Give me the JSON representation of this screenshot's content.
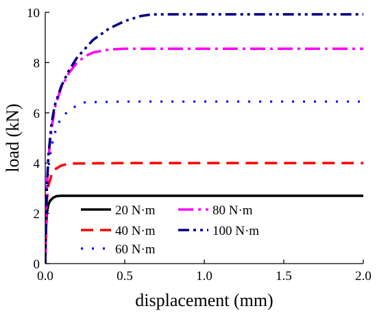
{
  "chart_data": {
    "type": "line",
    "xlabel": "displacement (mm)",
    "ylabel": "load (kN)",
    "xlim": [
      0,
      2.0
    ],
    "ylim": [
      0,
      10
    ],
    "xticks": [
      "0.0",
      "0.5",
      "1.0",
      "1.5",
      "2.0"
    ],
    "yticks": [
      "0",
      "2",
      "4",
      "6",
      "8",
      "10"
    ],
    "grid": false,
    "legend_position": "bottom-left",
    "series": [
      {
        "name": "20 N·m",
        "color": "#000000",
        "style": "solid",
        "x": [
          0,
          0.005,
          0.01,
          0.02,
          0.03,
          0.05,
          0.07,
          0.1,
          0.5,
          1.0,
          1.5,
          2.0
        ],
        "y": [
          0,
          1.4,
          2.0,
          2.35,
          2.5,
          2.62,
          2.68,
          2.7,
          2.7,
          2.7,
          2.7,
          2.7
        ]
      },
      {
        "name": "40 N·m",
        "color": "#ff0000",
        "style": "dash",
        "x": [
          0,
          0.005,
          0.01,
          0.02,
          0.04,
          0.06,
          0.1,
          0.15,
          0.5,
          1.0,
          1.5,
          2.0
        ],
        "y": [
          0,
          1.6,
          2.5,
          3.1,
          3.55,
          3.75,
          3.9,
          3.98,
          4.0,
          4.0,
          4.0,
          4.0
        ]
      },
      {
        "name": "60 N·m",
        "color": "#0000ff",
        "style": "dot",
        "x": [
          0,
          0.005,
          0.01,
          0.02,
          0.04,
          0.07,
          0.1,
          0.15,
          0.2,
          0.25,
          0.5,
          1.0,
          1.5,
          2.0
        ],
        "y": [
          0,
          1.7,
          2.8,
          3.8,
          4.7,
          5.4,
          5.8,
          6.1,
          6.3,
          6.42,
          6.45,
          6.45,
          6.45,
          6.45
        ]
      },
      {
        "name": "80 N·m",
        "color": "#ff00ff",
        "style": "dashdot",
        "x": [
          0,
          0.005,
          0.01,
          0.02,
          0.04,
          0.06,
          0.1,
          0.15,
          0.2,
          0.25,
          0.3,
          0.4,
          0.5,
          1.0,
          1.5,
          2.0
        ],
        "y": [
          0,
          1.6,
          3.0,
          4.2,
          5.4,
          6.2,
          7.0,
          7.6,
          8.0,
          8.25,
          8.4,
          8.52,
          8.55,
          8.55,
          8.55,
          8.55
        ]
      },
      {
        "name": "100 N·m",
        "color": "#000080",
        "style": "dashdotdot",
        "x": [
          0,
          0.005,
          0.01,
          0.02,
          0.04,
          0.06,
          0.1,
          0.15,
          0.2,
          0.3,
          0.4,
          0.5,
          0.6,
          0.65,
          0.7,
          1.0,
          1.5,
          2.0
        ],
        "y": [
          0,
          1.6,
          3.0,
          4.3,
          5.6,
          6.3,
          7.05,
          7.7,
          8.2,
          8.9,
          9.35,
          9.65,
          9.85,
          9.9,
          9.92,
          9.92,
          9.92,
          9.92
        ]
      }
    ]
  }
}
